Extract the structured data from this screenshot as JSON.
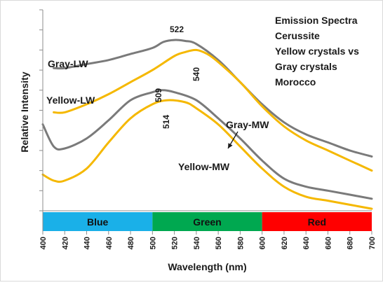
{
  "chart_data": {
    "type": "line",
    "xlabel": "Wavelength (nm)",
    "ylabel": "Relative Intensity",
    "xlim": [
      400,
      700
    ],
    "ylim": [
      0,
      100
    ],
    "x_ticks": [
      400,
      420,
      440,
      460,
      480,
      500,
      520,
      540,
      560,
      580,
      600,
      620,
      640,
      660,
      680,
      700
    ],
    "y_tick_count": 11,
    "grid": false,
    "info_text": [
      "Emission Spectra",
      "Cerussite",
      "Yellow crystals vs",
      "Gray crystals",
      "Morocco"
    ],
    "bands": [
      {
        "label": "Blue",
        "from": 400,
        "to": 500,
        "color": "#1ab0e8"
      },
      {
        "label": "Green",
        "from": 500,
        "to": 600,
        "color": "#00a850"
      },
      {
        "label": "Red",
        "from": 600,
        "to": 700,
        "color": "#ff0000"
      }
    ],
    "series": [
      {
        "name": "Gray-LW",
        "color": "#7a7a7a",
        "peak_label": "522",
        "points": [
          [
            410,
            71
          ],
          [
            420,
            71
          ],
          [
            440,
            73
          ],
          [
            460,
            75
          ],
          [
            480,
            78
          ],
          [
            500,
            81
          ],
          [
            510,
            84
          ],
          [
            520,
            85
          ],
          [
            530,
            84.5
          ],
          [
            540,
            83
          ],
          [
            560,
            75
          ],
          [
            580,
            64
          ],
          [
            600,
            53
          ],
          [
            620,
            44
          ],
          [
            640,
            38
          ],
          [
            660,
            34
          ],
          [
            680,
            30
          ],
          [
            700,
            27
          ]
        ]
      },
      {
        "name": "Yellow-LW",
        "color": "#f5b800",
        "peak_label": "540",
        "points": [
          [
            410,
            49
          ],
          [
            420,
            49
          ],
          [
            440,
            53
          ],
          [
            460,
            58
          ],
          [
            480,
            64
          ],
          [
            500,
            70
          ],
          [
            520,
            77
          ],
          [
            530,
            79
          ],
          [
            540,
            80
          ],
          [
            550,
            78
          ],
          [
            560,
            74
          ],
          [
            580,
            64
          ],
          [
            600,
            52
          ],
          [
            620,
            42
          ],
          [
            640,
            35
          ],
          [
            660,
            30
          ],
          [
            680,
            25
          ],
          [
            700,
            20
          ]
        ]
      },
      {
        "name": "Gray-MW",
        "color": "#7a7a7a",
        "peak_label": "509",
        "points": [
          [
            400,
            43
          ],
          [
            410,
            32
          ],
          [
            420,
            31
          ],
          [
            440,
            36
          ],
          [
            460,
            45
          ],
          [
            480,
            55
          ],
          [
            500,
            59
          ],
          [
            509,
            60
          ],
          [
            520,
            59
          ],
          [
            540,
            55
          ],
          [
            560,
            46
          ],
          [
            580,
            36
          ],
          [
            600,
            25
          ],
          [
            620,
            16
          ],
          [
            640,
            12
          ],
          [
            660,
            10
          ],
          [
            680,
            8
          ],
          [
            700,
            6
          ]
        ]
      },
      {
        "name": "Yellow-MW",
        "color": "#f5b800",
        "peak_label": "514",
        "points": [
          [
            400,
            18
          ],
          [
            410,
            15
          ],
          [
            420,
            15
          ],
          [
            440,
            21
          ],
          [
            460,
            34
          ],
          [
            480,
            46
          ],
          [
            500,
            53
          ],
          [
            514,
            55
          ],
          [
            530,
            54
          ],
          [
            540,
            51
          ],
          [
            560,
            43
          ],
          [
            580,
            32
          ],
          [
            600,
            21
          ],
          [
            620,
            12
          ],
          [
            640,
            7
          ],
          [
            660,
            5
          ],
          [
            680,
            3
          ],
          [
            700,
            1
          ]
        ]
      }
    ]
  }
}
